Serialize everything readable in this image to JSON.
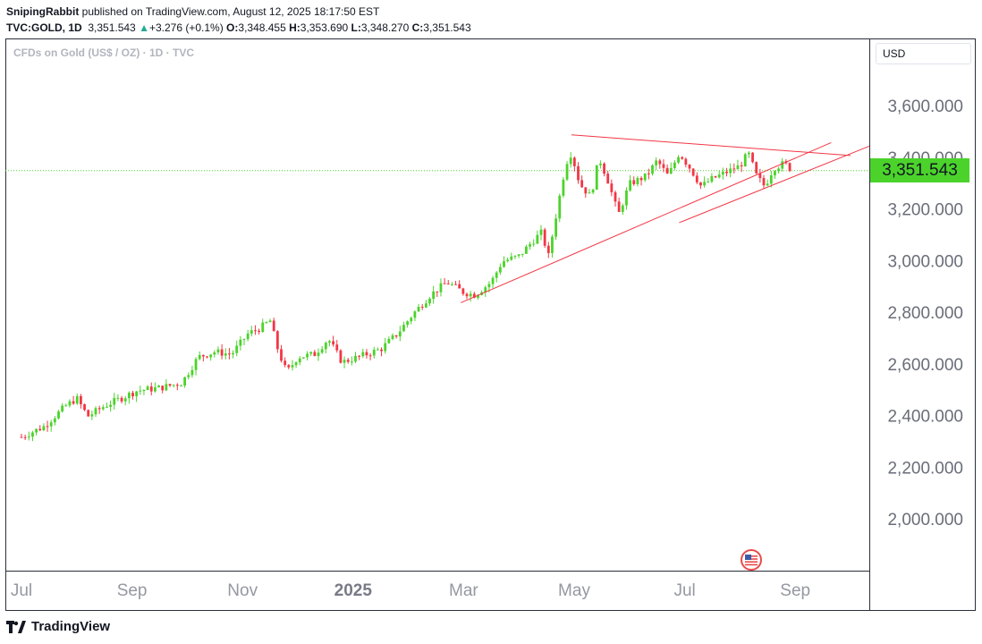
{
  "header": {
    "publisher": "SnipingRabbit",
    "published_text": " published on TradingView.com, August 12, 2025 18:17:50 EST",
    "symbol": "TVC:GOLD, 1D",
    "last": "3,351.543",
    "change": "+3.276 (+0.1%)",
    "o_label": "O:",
    "o_value": "3,348.455",
    "h_label": "H:",
    "h_value": "3,353.690",
    "l_label": "L:",
    "l_value": "3,348.270",
    "c_label": "C:",
    "c_value": "3,351.543"
  },
  "watermark": "CFDs on Gold (US$ / OZ) · 1D · TVC",
  "currency": "USD",
  "footer": {
    "brand": "TradingView"
  },
  "colors": {
    "up": "#22ab94",
    "down": "#f23645",
    "candle_up": "#4bd32b",
    "line": "#f23645",
    "price_tag": "#4bd32b"
  },
  "chart_data": {
    "type": "candlestick",
    "symbol": "TVC:GOLD",
    "ylim": [
      1850,
      3750
    ],
    "yticks": [
      {
        "value": 3600,
        "label": "3,600.000"
      },
      {
        "value": 3400,
        "label": "3,400.000"
      },
      {
        "value": 3200,
        "label": "3,200.000"
      },
      {
        "value": 3000,
        "label": "3,000.000"
      },
      {
        "value": 2800,
        "label": "2,800.000"
      },
      {
        "value": 2600,
        "label": "2,600.000"
      },
      {
        "value": 2400,
        "label": "2,400.000"
      },
      {
        "value": 2200,
        "label": "2,200.000"
      },
      {
        "value": 2000,
        "label": "2,000.000"
      }
    ],
    "xticks": [
      {
        "label": "Jul",
        "bold": false
      },
      {
        "label": "Sep",
        "bold": false
      },
      {
        "label": "Nov",
        "bold": false
      },
      {
        "label": "2025",
        "bold": true
      },
      {
        "label": "Mar",
        "bold": false
      },
      {
        "label": "May",
        "bold": false
      },
      {
        "label": "Jul",
        "bold": false
      },
      {
        "label": "Sep",
        "bold": false
      }
    ],
    "last_price": 3351.543,
    "last_price_label": "3,351.543",
    "trend_points": [
      {
        "month": 0.0,
        "close": 2320
      },
      {
        "month": 0.4,
        "close": 2360
      },
      {
        "month": 0.8,
        "close": 2440
      },
      {
        "month": 1.0,
        "close": 2470
      },
      {
        "month": 1.2,
        "close": 2400
      },
      {
        "month": 1.5,
        "close": 2440
      },
      {
        "month": 1.8,
        "close": 2470
      },
      {
        "month": 2.1,
        "close": 2500
      },
      {
        "month": 2.5,
        "close": 2510
      },
      {
        "month": 2.9,
        "close": 2530
      },
      {
        "month": 3.2,
        "close": 2630
      },
      {
        "month": 3.5,
        "close": 2650
      },
      {
        "month": 3.8,
        "close": 2640
      },
      {
        "month": 4.1,
        "close": 2720
      },
      {
        "month": 4.3,
        "close": 2740
      },
      {
        "month": 4.5,
        "close": 2770
      },
      {
        "month": 4.65,
        "close": 2650
      },
      {
        "month": 4.8,
        "close": 2570
      },
      {
        "month": 5.0,
        "close": 2630
      },
      {
        "month": 5.3,
        "close": 2640
      },
      {
        "month": 5.55,
        "close": 2700
      },
      {
        "month": 5.8,
        "close": 2610
      },
      {
        "month": 6.1,
        "close": 2630
      },
      {
        "month": 6.5,
        "close": 2660
      },
      {
        "month": 6.8,
        "close": 2720
      },
      {
        "month": 7.1,
        "close": 2800
      },
      {
        "month": 7.4,
        "close": 2870
      },
      {
        "month": 7.7,
        "close": 2920
      },
      {
        "month": 8.0,
        "close": 2880
      },
      {
        "month": 8.2,
        "close": 2870
      },
      {
        "month": 8.5,
        "close": 2920
      },
      {
        "month": 8.7,
        "close": 3000
      },
      {
        "month": 9.0,
        "close": 3020
      },
      {
        "month": 9.3,
        "close": 3090
      },
      {
        "month": 9.45,
        "close": 3120
      },
      {
        "month": 9.5,
        "close": 2980
      },
      {
        "month": 9.7,
        "close": 3210
      },
      {
        "month": 9.85,
        "close": 3380
      },
      {
        "month": 9.95,
        "close": 3420
      },
      {
        "month": 10.1,
        "close": 3300
      },
      {
        "month": 10.3,
        "close": 3250
      },
      {
        "month": 10.45,
        "close": 3400
      },
      {
        "month": 10.6,
        "close": 3320
      },
      {
        "month": 10.8,
        "close": 3180
      },
      {
        "month": 11.0,
        "close": 3300
      },
      {
        "month": 11.3,
        "close": 3330
      },
      {
        "month": 11.5,
        "close": 3390
      },
      {
        "month": 11.7,
        "close": 3330
      },
      {
        "month": 11.9,
        "close": 3420
      },
      {
        "month": 12.1,
        "close": 3360
      },
      {
        "month": 12.3,
        "close": 3290
      },
      {
        "month": 12.5,
        "close": 3320
      },
      {
        "month": 12.8,
        "close": 3350
      },
      {
        "month": 13.0,
        "close": 3370
      },
      {
        "month": 13.15,
        "close": 3420
      },
      {
        "month": 13.3,
        "close": 3330
      },
      {
        "month": 13.45,
        "close": 3290
      },
      {
        "month": 13.6,
        "close": 3360
      },
      {
        "month": 13.8,
        "close": 3380
      },
      {
        "month": 13.95,
        "close": 3351
      }
    ],
    "drawings": [
      {
        "name": "upper-trendline",
        "from": {
          "month": 9.95,
          "price": 3490
        },
        "to": {
          "month": 15.0,
          "price": 3410
        }
      },
      {
        "name": "lower-trendline",
        "from": {
          "month": 7.95,
          "price": 2840
        },
        "to": {
          "month": 14.65,
          "price": 3460
        }
      },
      {
        "name": "lower-parallel-line",
        "from": {
          "month": 11.9,
          "price": 3150
        },
        "to": {
          "month": 15.5,
          "price": 3460
        }
      }
    ]
  }
}
